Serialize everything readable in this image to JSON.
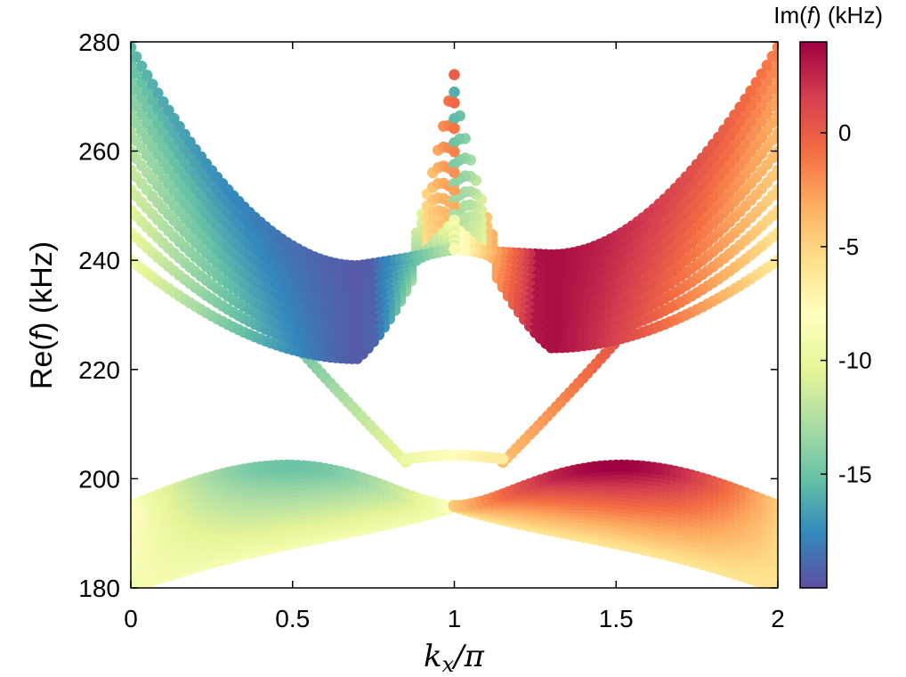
{
  "chart_data": {
    "type": "scatter",
    "xlabel": "k_x/π",
    "ylabel": "Re(f) (kHz)",
    "xlim": [
      0,
      2
    ],
    "ylim": [
      180,
      280
    ],
    "xticks": [
      0,
      0.5,
      1,
      1.5,
      2
    ],
    "xtick_labels": [
      "0",
      "0.5",
      "1",
      "1.5",
      "2"
    ],
    "yticks": [
      180,
      200,
      220,
      240,
      260,
      280
    ],
    "ytick_labels": [
      "180",
      "200",
      "220",
      "240",
      "260",
      "280"
    ],
    "colorbar": {
      "title": "Im(f) (kHz)",
      "range": [
        -20,
        4
      ],
      "ticks": [
        0,
        -5,
        -10,
        -15
      ],
      "tick_labels": [
        "0",
        "-5",
        "-10",
        "-15"
      ],
      "colormap": "Spectral"
    },
    "grid": false,
    "description_of_series": [
      {
        "band": "upper bands (x < 1)",
        "minimum_re_at_x": 0.7,
        "minimum_re_range_khz": [
          222,
          240
        ],
        "value_at_x0_khz": [
          240,
          279
        ],
        "meet_point": [
          1.0,
          242
        ],
        "im_range_khz": [
          -20,
          -8
        ]
      },
      {
        "band": "upper bands (x > 1)",
        "minimum_re_at_x": 1.3,
        "minimum_re_range_khz": [
          224,
          242
        ],
        "value_at_x2_khz": [
          240,
          279
        ],
        "im_range_khz": [
          -8,
          4
        ]
      },
      {
        "band": "crossing lines",
        "points": [
          [
            0.3,
            240
          ],
          [
            0.85,
            203
          ],
          [
            1.15,
            203
          ],
          [
            1.7,
            240
          ]
        ]
      },
      {
        "band": "lower band",
        "re_range_khz": [
          180,
          204
        ],
        "degenerate_point": [
          1.0,
          195
        ]
      }
    ]
  }
}
